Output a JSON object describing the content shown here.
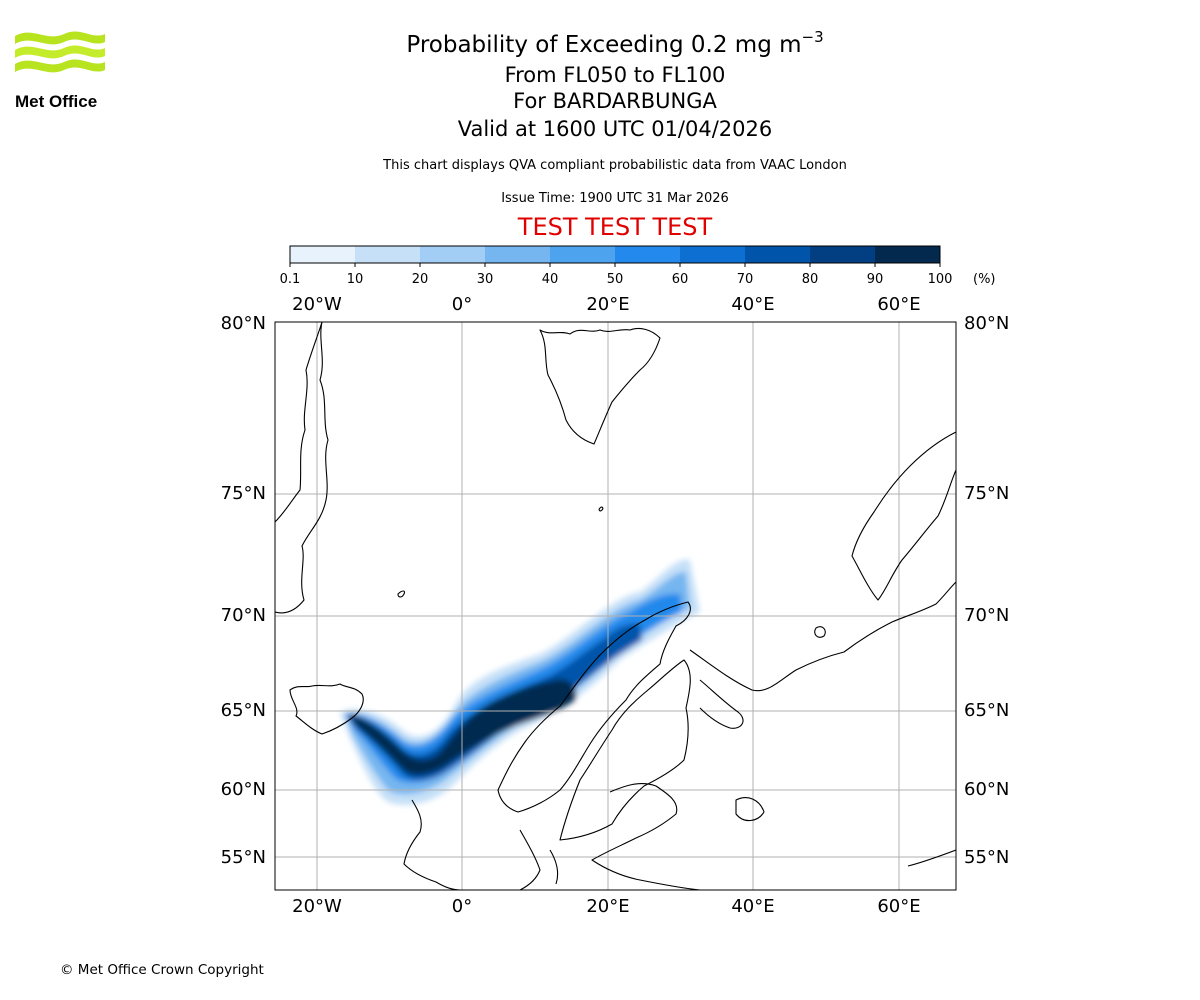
{
  "logo": {
    "name": "Met Office"
  },
  "header": {
    "title": "Probability of Exceeding 0.2 mg m",
    "title_exponent": "−3",
    "levels": "From FL050 to FL100",
    "volcano": "For BARDARBUNGA",
    "valid": "Valid at 1600 UTC 01/04/2026",
    "disclaimer": "This chart displays QVA compliant probabilistic data from VAAC London",
    "issue_time": "Issue Time: 1900 UTC 31 Mar 2026",
    "test_banner": "TEST TEST TEST"
  },
  "colors": {
    "test_banner": "#e00000",
    "bins": [
      "#e7f2fd",
      "#c6e0f8",
      "#a2cdf4",
      "#76b6f0",
      "#4ea3ee",
      "#2489ec",
      "#0c6fd1",
      "#0055ab",
      "#023f82",
      "#04294f"
    ],
    "grid": "#b0b0b0",
    "coast": "#000000"
  },
  "legend": {
    "ticks": [
      "0.1",
      "10",
      "20",
      "30",
      "40",
      "50",
      "60",
      "70",
      "80",
      "90",
      "100"
    ],
    "unit": "(%)"
  },
  "map": {
    "lon_labels": [
      "20°W",
      "0°",
      "20°E",
      "40°E",
      "60°E"
    ],
    "lat_labels": [
      "80°N",
      "75°N",
      "70°N",
      "65°N",
      "60°N",
      "55°N"
    ]
  },
  "footer": {
    "copyright": "© Met Office Crown Copyright"
  }
}
